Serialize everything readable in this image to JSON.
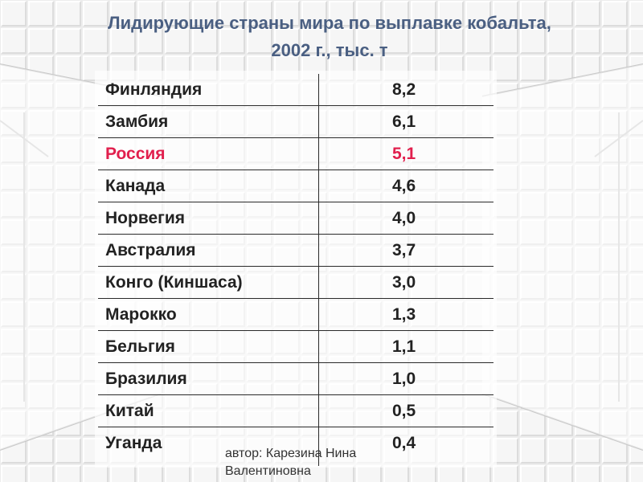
{
  "slide": {
    "title_line1": "Лидирующие страны мира по выплавке кобальта,",
    "title_line2": "2002 г., тыс. т",
    "author_line1": "автор: Карезина Нина",
    "author_line2": "Валентиновна",
    "highlight_color": "#e11f4d",
    "title_color": "#4a5f82"
  },
  "table": {
    "rows": [
      {
        "country": "Финляндия",
        "value": "8,2"
      },
      {
        "country": "Замбия",
        "value": "6,1"
      },
      {
        "country": "Россия",
        "value": "5,1",
        "highlight": true
      },
      {
        "country": "Канада",
        "value": "4,6"
      },
      {
        "country": "Норвегия",
        "value": "4,0"
      },
      {
        "country": "Австралия",
        "value": "3,7"
      },
      {
        "country": "Конго (Киншаса)",
        "value": "3,0"
      },
      {
        "country": "Марокко",
        "value": "1,3"
      },
      {
        "country": "Бельгия",
        "value": "1,1"
      },
      {
        "country": "Бразилия",
        "value": "1,0"
      },
      {
        "country": "Китай",
        "value": "0,5"
      },
      {
        "country": "Уганда",
        "value": "0,4"
      }
    ]
  }
}
